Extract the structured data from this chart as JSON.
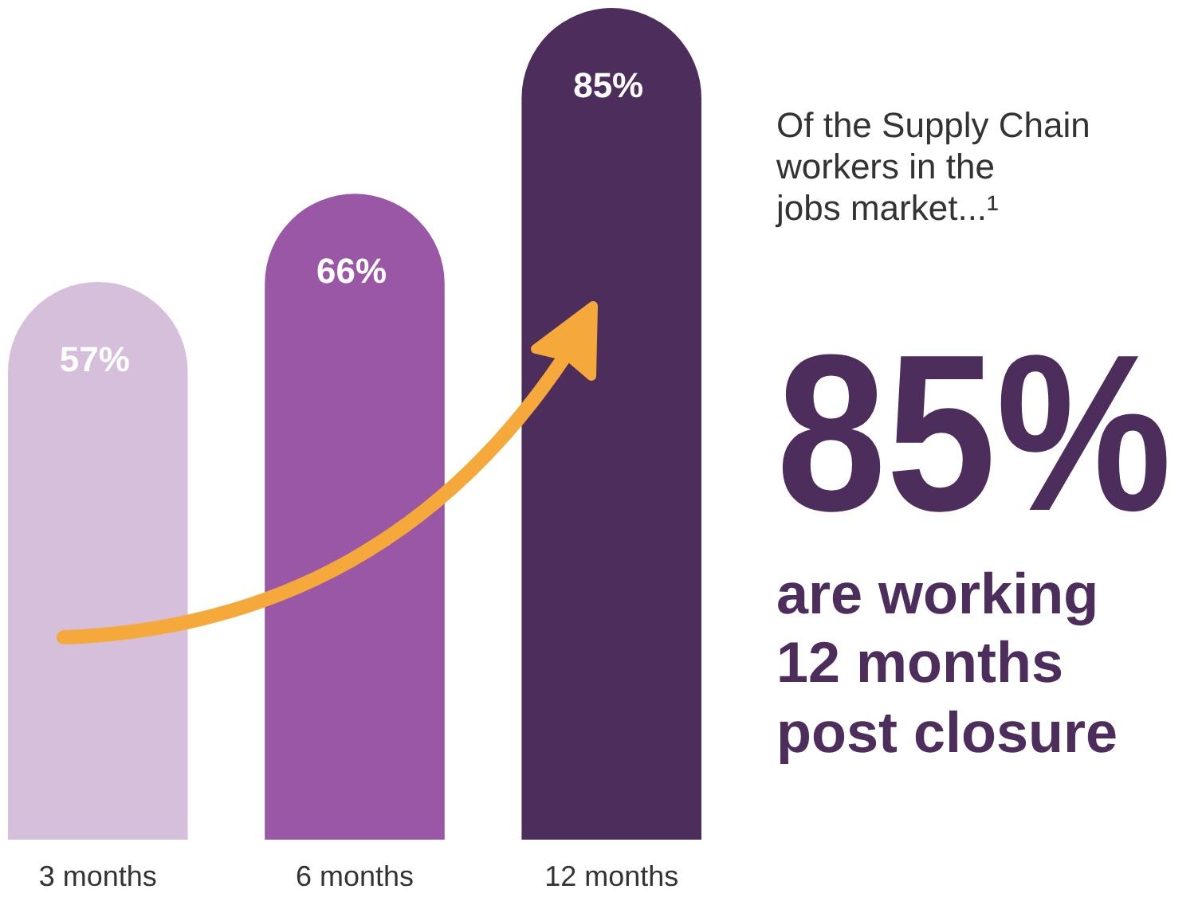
{
  "chart_data": {
    "type": "bar",
    "categories": [
      "3 months",
      "6 months",
      "12 months"
    ],
    "values": [
      57,
      66,
      85
    ],
    "colors": [
      "#d5bfdb",
      "#9a57a6",
      "#4d2d5c"
    ],
    "value_labels": [
      "57%",
      "66%",
      "85%"
    ],
    "annotations": [
      "Of the Supply Chain",
      "workers in the",
      "jobs market...¹",
      "85%",
      "are working",
      "12 months",
      "post closure"
    ]
  }
}
